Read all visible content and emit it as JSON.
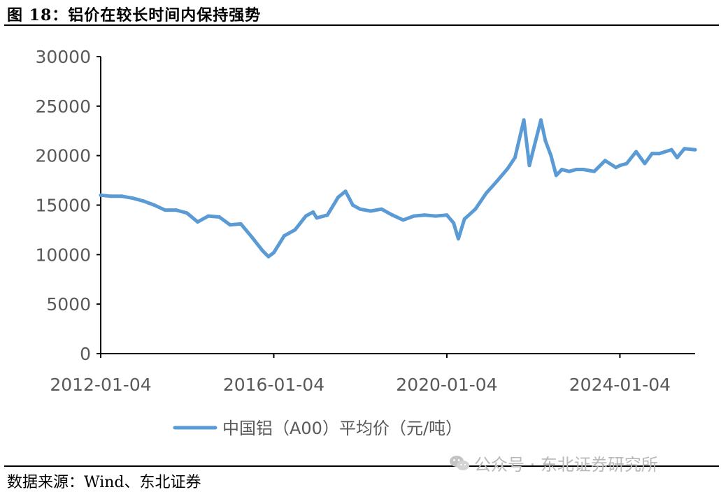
{
  "header": {
    "figure_title": "图 18：铝价在较长时间内保持强势"
  },
  "footer": {
    "source": "数据来源：Wind、东北证券"
  },
  "watermark": {
    "text": "公众号 · 东北证券研究所",
    "icon": "wechat-icon"
  },
  "colors": {
    "line": "#5B9BD5",
    "axis": "#000000",
    "tick_text": "#595959"
  },
  "chart_data": {
    "type": "line",
    "title": "",
    "xlabel": "",
    "ylabel": "",
    "ylim": [
      0,
      30000
    ],
    "yticks": [
      0,
      5000,
      10000,
      15000,
      20000,
      25000,
      30000
    ],
    "ytick_labels": [
      "0",
      "5000",
      "10000",
      "15000",
      "20000",
      "25000",
      "30000"
    ],
    "xlim": [
      "2012-01-04",
      "2025-09-30"
    ],
    "xticks": [
      "2012-01-04",
      "2016-01-04",
      "2020-01-04",
      "2024-01-04"
    ],
    "grid": false,
    "legend_position": "bottom",
    "series": [
      {
        "name": "中国铝（A00）平均价（元/吨）",
        "x": [
          "2012-01-04",
          "2012-04-01",
          "2012-07-01",
          "2012-10-01",
          "2013-01-01",
          "2013-04-01",
          "2013-07-01",
          "2013-10-01",
          "2014-01-01",
          "2014-04-01",
          "2014-07-01",
          "2014-10-01",
          "2015-01-01",
          "2015-04-01",
          "2015-07-01",
          "2015-10-01",
          "2015-11-20",
          "2016-01-04",
          "2016-04-01",
          "2016-07-01",
          "2016-10-01",
          "2016-12-01",
          "2017-01-01",
          "2017-04-01",
          "2017-07-01",
          "2017-09-01",
          "2017-11-01",
          "2018-01-01",
          "2018-04-01",
          "2018-07-01",
          "2018-10-01",
          "2019-01-01",
          "2019-04-01",
          "2019-07-01",
          "2019-10-01",
          "2020-01-04",
          "2020-03-01",
          "2020-04-10",
          "2020-06-01",
          "2020-09-01",
          "2020-12-01",
          "2021-03-01",
          "2021-06-01",
          "2021-08-01",
          "2021-10-15",
          "2021-12-01",
          "2022-01-01",
          "2022-03-08",
          "2022-04-15",
          "2022-06-01",
          "2022-07-15",
          "2022-09-01",
          "2022-11-01",
          "2023-01-01",
          "2023-03-01",
          "2023-06-01",
          "2023-09-01",
          "2023-12-01",
          "2024-01-04",
          "2024-03-01",
          "2024-05-20",
          "2024-08-01",
          "2024-10-01",
          "2024-12-01",
          "2025-03-15",
          "2025-05-01",
          "2025-07-01",
          "2025-09-30"
        ],
        "values": [
          16000,
          15900,
          15900,
          15700,
          15400,
          15000,
          14500,
          14500,
          14200,
          13300,
          13900,
          13800,
          13000,
          13100,
          11800,
          10400,
          9800,
          10200,
          11900,
          12500,
          13900,
          14300,
          13700,
          14000,
          15800,
          16400,
          15000,
          14600,
          14400,
          14600,
          14000,
          13500,
          13900,
          14000,
          13900,
          14000,
          13200,
          11600,
          13600,
          14600,
          16200,
          17400,
          18700,
          19800,
          23600,
          19000,
          20500,
          23600,
          21500,
          20000,
          18000,
          18600,
          18400,
          18600,
          18600,
          18400,
          19500,
          18800,
          19000,
          19200,
          20400,
          19200,
          20200,
          20200,
          20600,
          19800,
          20700,
          20600
        ]
      }
    ]
  }
}
